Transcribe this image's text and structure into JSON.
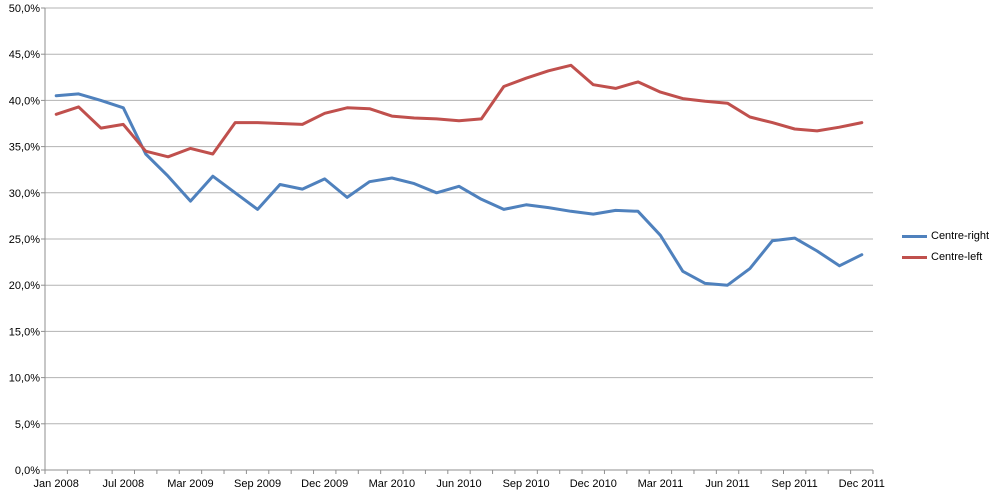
{
  "chart_data": {
    "type": "line",
    "title": "",
    "n_points": 37,
    "label_every_n_points": 3,
    "x_labels_shown": [
      "Jan 2008",
      "Jul 2008",
      "Mar 2009",
      "Sep 2009",
      "Dec 2009",
      "Mar 2010",
      "Jun 2010",
      "Sep 2010",
      "Dec 2010",
      "Mar 2011",
      "Jun 2011",
      "Sep 2011",
      "Dec 2011"
    ],
    "series": [
      {
        "name": "Centre-right",
        "color": "#4F81BD",
        "values": [
          40.5,
          40.7,
          40.0,
          39.2,
          34.2,
          31.8,
          29.1,
          31.8,
          30.0,
          28.2,
          30.9,
          30.4,
          31.5,
          29.5,
          31.2,
          31.6,
          31.0,
          30.0,
          30.7,
          29.3,
          28.2,
          28.7,
          28.4,
          28.0,
          27.7,
          28.1,
          28.0,
          25.4,
          21.5,
          20.2,
          20.0,
          21.8,
          24.8,
          25.1,
          23.7,
          22.1,
          23.3
        ]
      },
      {
        "name": "Centre-left",
        "color": "#C0504D",
        "values": [
          38.5,
          39.3,
          37.0,
          37.4,
          34.5,
          33.9,
          34.8,
          34.2,
          37.6,
          37.6,
          37.5,
          37.4,
          38.6,
          39.2,
          39.1,
          38.3,
          38.1,
          38.0,
          37.8,
          38.0,
          41.5,
          42.4,
          43.2,
          43.8,
          41.7,
          41.3,
          42.0,
          40.9,
          40.2,
          39.9,
          39.7,
          38.2,
          37.6,
          36.9,
          36.7,
          37.1,
          37.6
        ]
      }
    ],
    "y_axis": {
      "min": 0,
      "max": 50,
      "step": 5,
      "tick_labels": [
        "0,0%",
        "5,0%",
        "10,0%",
        "15,0%",
        "20,0%",
        "25,0%",
        "30,0%",
        "35,0%",
        "40,0%",
        "45,0%",
        "50,0%"
      ]
    },
    "xlabel": "",
    "ylabel": "",
    "grid": true,
    "legend_position": "right",
    "grid_color": "#B3B3B3",
    "axis_color": "#8F8F8F",
    "text_color": "#000000",
    "background_color": "#FFFFFF"
  }
}
